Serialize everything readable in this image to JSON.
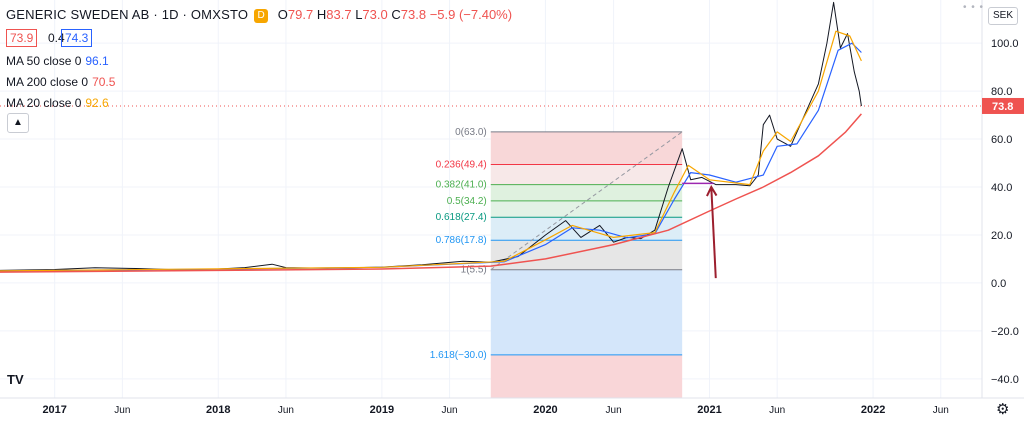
{
  "header": {
    "symbol": "GENERIC SWEDEN AB · 1D · OMXSTO",
    "badge": "D",
    "open_label": "O",
    "open": "79.7",
    "high_label": "H",
    "high": "83.7",
    "low_label": "L",
    "low": "73.0",
    "close_label": "C",
    "close": "73.8",
    "change": "−5.9 (−7.40%)"
  },
  "price_boxes": {
    "bid": "73.9",
    "spread": "0.4",
    "ask": "74.3"
  },
  "indicators": [
    {
      "label": "MA 50 close 0",
      "value": "96.1",
      "color": "#2962ff"
    },
    {
      "label": "MA 200 close 0",
      "value": "70.5",
      "color": "#ef5350"
    },
    {
      "label": "MA 20 close 0",
      "value": "92.6",
      "color": "#f7a600"
    }
  ],
  "collapse_icon": "chevron-up-icon",
  "logo": "TV",
  "currency_button": "SEK",
  "settings_icon": "gear-icon",
  "chart_data": {
    "type": "line",
    "x_axis_labels": [
      "2017",
      "Jun",
      "2018",
      "Jun",
      "2019",
      "Jun",
      "2020",
      "Jun",
      "2021",
      "Jun",
      "2022",
      "Jun"
    ],
    "x_axis_dates": [
      "2017-01-01",
      "2017-06-01",
      "2018-01-01",
      "2018-06-01",
      "2019-01-01",
      "2019-06-01",
      "2020-01-01",
      "2020-06-01",
      "2021-01-01",
      "2021-06-01",
      "2022-01-01",
      "2022-06-01"
    ],
    "y_ticks": [
      -40,
      -20,
      0,
      20,
      40,
      60,
      80,
      100
    ],
    "y_tick_labels": [
      "−40.0",
      "−20.0",
      "0.0",
      "20.0",
      "40.0",
      "60.0",
      "80.0",
      "100.0"
    ],
    "ylim": [
      -48,
      118
    ],
    "last_price": 73.8,
    "last_price_label": "73.8",
    "colors": {
      "price": "#131722",
      "ma50": "#2962ff",
      "ma200": "#ef5350",
      "ma20": "#f7a600",
      "arrow": "#9c1f2e"
    },
    "series": [
      {
        "name": "Price",
        "points": [
          [
            "2016-09-01",
            5.2
          ],
          [
            "2017-01-01",
            5.6
          ],
          [
            "2017-04-01",
            6.3
          ],
          [
            "2017-07-01",
            6.0
          ],
          [
            "2017-10-01",
            5.5
          ],
          [
            "2018-01-01",
            5.8
          ],
          [
            "2018-03-01",
            6.4
          ],
          [
            "2018-05-01",
            7.8
          ],
          [
            "2018-06-01",
            6.4
          ],
          [
            "2018-09-01",
            6.1
          ],
          [
            "2019-01-01",
            6.6
          ],
          [
            "2019-04-01",
            7.6
          ],
          [
            "2019-07-01",
            9.0
          ],
          [
            "2019-09-01",
            8.6
          ],
          [
            "2019-11-01",
            11.0
          ],
          [
            "2020-01-01",
            20.0
          ],
          [
            "2020-02-15",
            26.0
          ],
          [
            "2020-03-20",
            19.0
          ],
          [
            "2020-05-01",
            24.0
          ],
          [
            "2020-06-01",
            17.0
          ],
          [
            "2020-07-01",
            19.0
          ],
          [
            "2020-08-01",
            18.5
          ],
          [
            "2020-09-01",
            22.0
          ],
          [
            "2020-10-01",
            40.0
          ],
          [
            "2020-11-01",
            56.0
          ],
          [
            "2020-11-20",
            43.0
          ],
          [
            "2020-12-15",
            44.0
          ],
          [
            "2021-01-15",
            41.0
          ],
          [
            "2021-03-01",
            41.0
          ],
          [
            "2021-04-01",
            40.5
          ],
          [
            "2021-04-20",
            45.0
          ],
          [
            "2021-05-01",
            66.0
          ],
          [
            "2021-05-15",
            70.0
          ],
          [
            "2021-06-01",
            60.0
          ],
          [
            "2021-07-01",
            57.0
          ],
          [
            "2021-08-01",
            70.0
          ],
          [
            "2021-09-01",
            83.0
          ],
          [
            "2021-09-20",
            100.0
          ],
          [
            "2021-10-05",
            117.0
          ],
          [
            "2021-10-20",
            98.0
          ],
          [
            "2021-11-05",
            104.0
          ],
          [
            "2021-11-20",
            88.0
          ],
          [
            "2021-12-01",
            80.0
          ],
          [
            "2021-12-06",
            73.8
          ]
        ]
      },
      {
        "name": "MA 50",
        "points": [
          [
            "2016-09-01",
            5.0
          ],
          [
            "2018-01-01",
            5.7
          ],
          [
            "2019-01-01",
            6.5
          ],
          [
            "2019-10-01",
            8.8
          ],
          [
            "2020-01-01",
            16.0
          ],
          [
            "2020-03-01",
            23.0
          ],
          [
            "2020-05-01",
            22.0
          ],
          [
            "2020-07-01",
            18.8
          ],
          [
            "2020-09-01",
            20.5
          ],
          [
            "2020-10-15",
            35.0
          ],
          [
            "2020-11-20",
            46.0
          ],
          [
            "2021-01-01",
            45.0
          ],
          [
            "2021-03-01",
            42.0
          ],
          [
            "2021-05-01",
            45.0
          ],
          [
            "2021-06-01",
            57.0
          ],
          [
            "2021-07-15",
            58.0
          ],
          [
            "2021-09-01",
            72.0
          ],
          [
            "2021-10-15",
            97.0
          ],
          [
            "2021-11-15",
            100.0
          ],
          [
            "2021-12-06",
            96.1
          ]
        ]
      },
      {
        "name": "MA 20",
        "points": [
          [
            "2016-09-01",
            5.0
          ],
          [
            "2019-01-01",
            6.5
          ],
          [
            "2019-10-01",
            9.0
          ],
          [
            "2020-01-01",
            18.0
          ],
          [
            "2020-03-01",
            24.0
          ],
          [
            "2020-06-01",
            19.0
          ],
          [
            "2020-09-01",
            21.0
          ],
          [
            "2020-10-15",
            38.0
          ],
          [
            "2020-11-15",
            49.0
          ],
          [
            "2021-01-01",
            43.0
          ],
          [
            "2021-04-01",
            41.0
          ],
          [
            "2021-05-01",
            55.0
          ],
          [
            "2021-06-01",
            63.0
          ],
          [
            "2021-07-01",
            59.0
          ],
          [
            "2021-09-01",
            80.0
          ],
          [
            "2021-10-10",
            105.0
          ],
          [
            "2021-11-10",
            103.0
          ],
          [
            "2021-12-06",
            92.6
          ]
        ]
      },
      {
        "name": "MA 200",
        "points": [
          [
            "2016-09-01",
            4.5
          ],
          [
            "2018-01-01",
            5.2
          ],
          [
            "2019-01-01",
            5.8
          ],
          [
            "2019-09-01",
            7.0
          ],
          [
            "2020-01-01",
            10.0
          ],
          [
            "2020-06-01",
            16.0
          ],
          [
            "2020-10-01",
            22.0
          ],
          [
            "2021-01-01",
            30.0
          ],
          [
            "2021-03-01",
            35.0
          ],
          [
            "2021-05-01",
            40.0
          ],
          [
            "2021-07-01",
            46.0
          ],
          [
            "2021-09-01",
            53.0
          ],
          [
            "2021-11-01",
            63.0
          ],
          [
            "2021-12-06",
            70.5
          ]
        ]
      }
    ],
    "fibonacci": {
      "x_start": "2019-09-01",
      "x_end": "2020-11-01",
      "trend_from": [
        "2019-09-01",
        5.5
      ],
      "trend_to": [
        "2020-11-01",
        63.0
      ],
      "levels": [
        {
          "label": "0(63.0)",
          "value": 63.0,
          "color": "#787b86"
        },
        {
          "label": "0.236(49.4)",
          "value": 49.4,
          "color": "#f23645"
        },
        {
          "label": "0.382(41.0)",
          "value": 41.0,
          "color": "#4caf50"
        },
        {
          "label": "0.5(34.2)",
          "value": 34.2,
          "color": "#4caf50"
        },
        {
          "label": "0.618(27.4)",
          "value": 27.4,
          "color": "#089981"
        },
        {
          "label": "0.786(17.8)",
          "value": 17.8,
          "color": "#2196f3"
        },
        {
          "label": "1(5.5)",
          "value": 5.5,
          "color": "#787b86"
        },
        {
          "label": "1.618(−30.0)",
          "value": -30.0,
          "color": "#2196f3"
        }
      ],
      "bands": [
        {
          "from": 63.0,
          "to": 49.4,
          "color": "#f8d7d8"
        },
        {
          "from": 49.4,
          "to": 41.0,
          "color": "#f7e8e8"
        },
        {
          "from": 41.0,
          "to": 34.2,
          "color": "#dff1df"
        },
        {
          "from": 34.2,
          "to": 27.4,
          "color": "#e3f2e6"
        },
        {
          "from": 27.4,
          "to": 17.8,
          "color": "#dcedf7"
        },
        {
          "from": 17.8,
          "to": 5.5,
          "color": "#e6e6e6"
        },
        {
          "from": 5.5,
          "to": -30.0,
          "color": "#d4e6fa"
        },
        {
          "from": -30.0,
          "to": -48.0,
          "color": "#f9d6d8"
        }
      ]
    },
    "support_line": {
      "from": [
        "2020-11-01",
        41.5
      ],
      "to": [
        "2021-01-10",
        41.5
      ],
      "color": "#9c27b0"
    },
    "arrow": {
      "from": [
        "2021-01-15",
        2.0
      ],
      "to": [
        "2021-01-05",
        40.0
      ]
    }
  }
}
